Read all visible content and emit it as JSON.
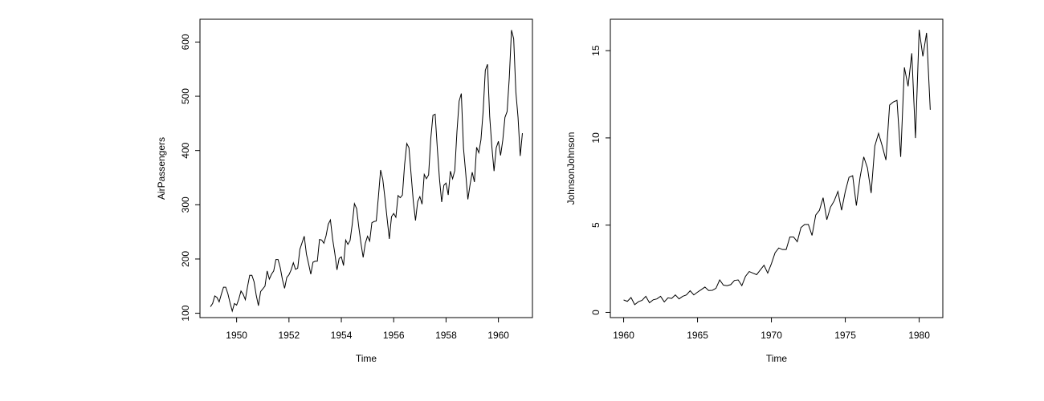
{
  "colors": {
    "line": "#000000",
    "axis": "#000000",
    "background": "#ffffff"
  },
  "chart_data": [
    {
      "type": "line",
      "xlabel": "Time",
      "ylabel": "AirPassengers",
      "xlim": [
        1948.6,
        1961.3
      ],
      "ylim": [
        92,
        642
      ],
      "x_ticks": [
        1950,
        1952,
        1954,
        1956,
        1958,
        1960
      ],
      "x_tick_labels": [
        "1950",
        "1952",
        "1954",
        "1956",
        "1958",
        "1960"
      ],
      "y_ticks": [
        100,
        200,
        300,
        400,
        500,
        600
      ],
      "y_tick_labels": [
        "100",
        "200",
        "300",
        "400",
        "500",
        "600"
      ],
      "grid": false,
      "legend": "none",
      "x_start": 1949,
      "x_step": 0.0833333333,
      "values": [
        112,
        118,
        132,
        129,
        121,
        135,
        148,
        148,
        136,
        119,
        104,
        118,
        115,
        126,
        141,
        135,
        125,
        149,
        170,
        170,
        158,
        133,
        114,
        140,
        145,
        150,
        178,
        163,
        172,
        178,
        199,
        199,
        184,
        162,
        146,
        166,
        171,
        180,
        193,
        181,
        183,
        218,
        230,
        242,
        209,
        191,
        172,
        194,
        196,
        196,
        236,
        235,
        229,
        243,
        264,
        272,
        237,
        211,
        180,
        201,
        204,
        188,
        235,
        227,
        234,
        264,
        302,
        293,
        259,
        229,
        203,
        229,
        242,
        233,
        267,
        269,
        270,
        315,
        364,
        347,
        312,
        274,
        237,
        278,
        284,
        277,
        317,
        313,
        318,
        374,
        413,
        405,
        355,
        306,
        271,
        306,
        315,
        301,
        356,
        348,
        355,
        422,
        465,
        467,
        404,
        347,
        305,
        336,
        340,
        318,
        362,
        348,
        363,
        435,
        491,
        505,
        404,
        359,
        310,
        337,
        360,
        342,
        406,
        396,
        420,
        472,
        548,
        559,
        463,
        407,
        362,
        405,
        417,
        391,
        419,
        461,
        472,
        535,
        622,
        606,
        508,
        461,
        390,
        432
      ]
    },
    {
      "type": "line",
      "xlabel": "Time",
      "ylabel": "JohnsonJohnson",
      "xlim": [
        1959.1,
        1981.6
      ],
      "ylim": [
        -0.3,
        16.8
      ],
      "x_ticks": [
        1960,
        1965,
        1970,
        1975,
        1980
      ],
      "x_tick_labels": [
        "1960",
        "1965",
        "1970",
        "1975",
        "1980"
      ],
      "y_ticks": [
        0,
        5,
        10,
        15
      ],
      "y_tick_labels": [
        "0",
        "5",
        "10",
        "15"
      ],
      "grid": false,
      "legend": "none",
      "x_start": 1960,
      "x_step": 0.25,
      "values": [
        0.71,
        0.63,
        0.85,
        0.44,
        0.61,
        0.69,
        0.92,
        0.55,
        0.72,
        0.77,
        0.92,
        0.6,
        0.83,
        0.8,
        1.0,
        0.77,
        0.92,
        1.0,
        1.24,
        1.0,
        1.16,
        1.3,
        1.45,
        1.25,
        1.26,
        1.38,
        1.86,
        1.56,
        1.53,
        1.59,
        1.83,
        1.86,
        1.53,
        2.07,
        2.34,
        2.25,
        2.16,
        2.43,
        2.7,
        2.25,
        2.79,
        3.42,
        3.69,
        3.6,
        3.6,
        4.32,
        4.32,
        4.05,
        4.86,
        5.04,
        5.04,
        4.41,
        5.58,
        5.85,
        6.57,
        5.31,
        6.03,
        6.39,
        6.93,
        5.85,
        6.93,
        7.74,
        7.83,
        6.12,
        7.74,
        8.91,
        8.28,
        6.84,
        9.54,
        10.26,
        9.54,
        8.73,
        11.88,
        12.06,
        12.15,
        8.91,
        14.04,
        12.96,
        14.85,
        9.99,
        16.2,
        14.67,
        16.02,
        11.61
      ]
    }
  ]
}
